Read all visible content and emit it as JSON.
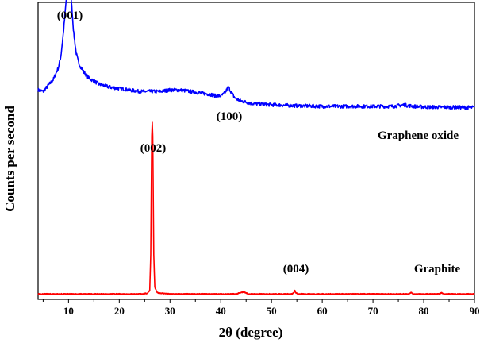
{
  "chart_data": {
    "type": "line",
    "xlabel": "2θ  (degree)",
    "ylabel": "Counts per second",
    "xlim": [
      4,
      90
    ],
    "xticks": [
      10,
      20,
      30,
      40,
      50,
      60,
      70,
      80,
      90
    ],
    "y_tick_labels": "none",
    "grid": false,
    "series": [
      {
        "name": "Graphene oxide",
        "color": "#0000ff",
        "peaks": [
          {
            "label": "(001)",
            "position_2theta": 10.0
          },
          {
            "label": "(100)",
            "position_2theta": 41.5
          }
        ],
        "x": [
          4,
          5,
          6,
          7,
          8,
          8.5,
          9,
          9.5,
          10,
          10.5,
          11,
          11.5,
          12,
          13,
          14,
          15,
          16,
          18,
          20,
          22,
          24,
          26,
          28,
          30,
          32,
          34,
          36,
          38,
          39,
          40,
          40.5,
          41,
          41.5,
          42,
          42.5,
          43,
          44,
          46,
          50,
          55,
          60,
          65,
          70,
          74,
          76,
          78,
          80,
          85,
          90
        ],
        "y": [
          0.705,
          0.7,
          0.72,
          0.74,
          0.78,
          0.82,
          0.9,
          1.0,
          1.08,
          1.02,
          0.9,
          0.83,
          0.795,
          0.765,
          0.745,
          0.735,
          0.725,
          0.715,
          0.71,
          0.705,
          0.7,
          0.7,
          0.7,
          0.705,
          0.705,
          0.7,
          0.695,
          0.69,
          0.685,
          0.685,
          0.69,
          0.7,
          0.715,
          0.7,
          0.685,
          0.675,
          0.668,
          0.66,
          0.655,
          0.652,
          0.65,
          0.65,
          0.65,
          0.65,
          0.655,
          0.65,
          0.648,
          0.647,
          0.646
        ]
      },
      {
        "name": "Graphite",
        "color": "#ff0000",
        "peaks": [
          {
            "label": "(002)",
            "position_2theta": 26.5
          },
          {
            "label": "(004)",
            "position_2theta": 54.6
          }
        ],
        "x": [
          4,
          10,
          20,
          24,
          25.5,
          26,
          26.2,
          26.4,
          26.5,
          26.6,
          26.8,
          27,
          27.5,
          30,
          40,
          43,
          44.5,
          45.5,
          50,
          54,
          54.4,
          54.6,
          54.8,
          55.2,
          60,
          70,
          77,
          77.5,
          78,
          83,
          83.5,
          84,
          90
        ],
        "y": [
          0.018,
          0.018,
          0.018,
          0.018,
          0.02,
          0.03,
          0.15,
          0.55,
          0.595,
          0.55,
          0.15,
          0.04,
          0.022,
          0.018,
          0.018,
          0.018,
          0.025,
          0.018,
          0.018,
          0.018,
          0.022,
          0.03,
          0.022,
          0.018,
          0.018,
          0.018,
          0.018,
          0.023,
          0.018,
          0.018,
          0.022,
          0.018,
          0.018
        ]
      }
    ]
  },
  "annotations": {
    "go_001": "(001)",
    "go_100": "(100)",
    "go_name": "Graphene oxide",
    "gr_002": "(002)",
    "gr_004": "(004)",
    "gr_name": "Graphite"
  }
}
